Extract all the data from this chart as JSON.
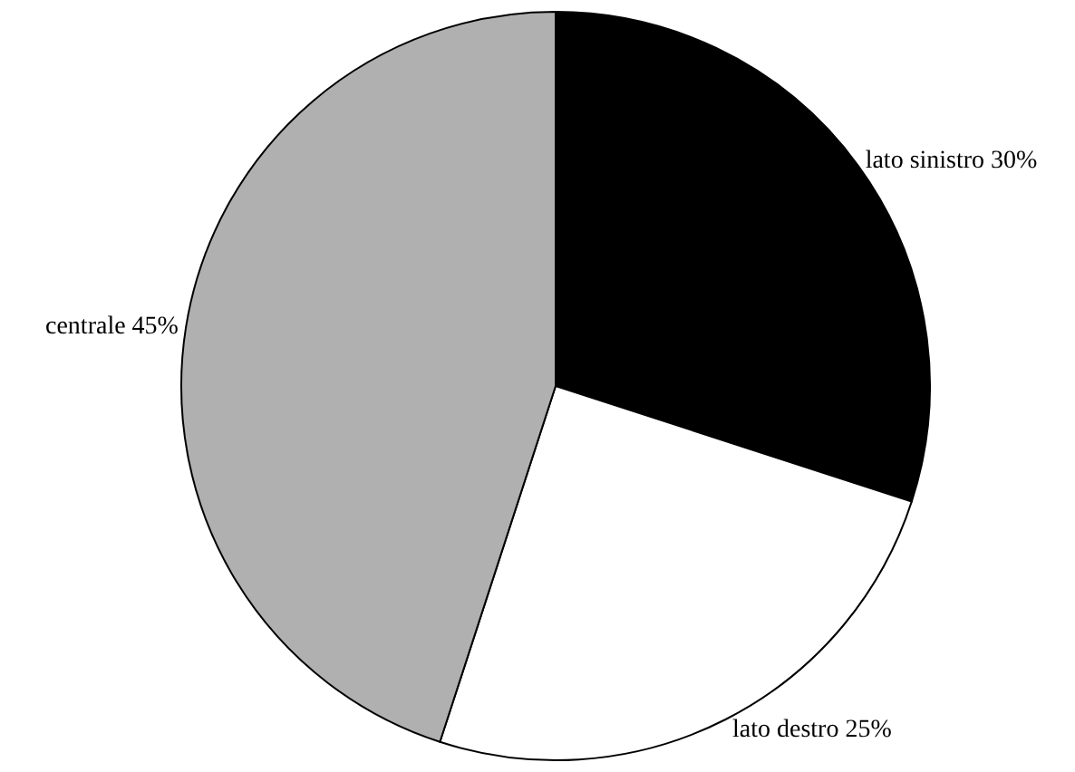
{
  "chart_data": {
    "type": "pie",
    "categories": [
      "lato sinistro",
      "lato destro",
      "centrale"
    ],
    "values": [
      30,
      25,
      45
    ],
    "value_labels": [
      "30%",
      "25%",
      "45%"
    ],
    "colors": [
      "#000000",
      "#ffffff",
      "#b0b0b0"
    ],
    "legend": false
  }
}
